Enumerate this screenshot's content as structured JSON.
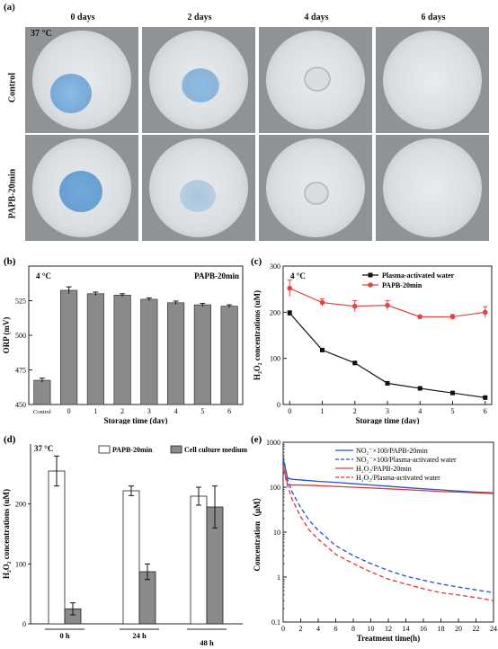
{
  "panel_a": {
    "label": "(a)",
    "temperature": "37 °C",
    "columns": [
      "0 days",
      "2 days",
      "4 days",
      "6 days"
    ],
    "rows": [
      "Control",
      "PAPB-20min"
    ],
    "drop_color": "#7fb2df"
  },
  "chart_data": [
    {
      "panel": "(b)",
      "type": "bar",
      "annotation_left": "4 °C",
      "annotation_right": "PAPB-20min",
      "categories": [
        "Control",
        "0",
        "1",
        "2",
        "3",
        "4",
        "5",
        "6"
      ],
      "values": [
        467.5,
        532.5,
        530,
        529,
        526,
        523.5,
        522,
        521
      ],
      "errors": [
        1.5,
        2.5,
        1.2,
        1.0,
        1.0,
        1.2,
        1.0,
        1.0
      ],
      "xlabel": "Storage time (day)",
      "ylabel": "ORP (mV)",
      "ylim": [
        450,
        550
      ],
      "yticks": [
        450,
        475,
        500,
        525
      ],
      "bar_color": "#8a8a8a"
    },
    {
      "panel": "(c)",
      "type": "line",
      "annotation": "4 °C",
      "x": [
        0,
        1,
        2,
        3,
        4,
        5,
        6
      ],
      "series": [
        {
          "name": "Plasma-activated water",
          "values": [
            198,
            118,
            90,
            46,
            35,
            25,
            15
          ],
          "errors": [
            5,
            2,
            2,
            2,
            2,
            2,
            2
          ],
          "color": "#111111",
          "marker": "square"
        },
        {
          "name": "PAPB-20min",
          "values": [
            252,
            221,
            213,
            215,
            190,
            190,
            200
          ],
          "errors": [
            18,
            8,
            12,
            10,
            3,
            5,
            12
          ],
          "color": "#e04444",
          "marker": "circle"
        }
      ],
      "xlabel": "Storage time (day)",
      "ylabel": "H₂O₂ concentrations (uM)",
      "xlim": [
        -0.2,
        6.2
      ],
      "ylim": [
        0,
        300
      ],
      "yticks": [
        0,
        100,
        200,
        300
      ],
      "legend": "top-right"
    },
    {
      "panel": "(d)",
      "type": "bar",
      "annotation": "37 °C",
      "categories": [
        "0 h",
        "24 h",
        "48 h"
      ],
      "series": [
        {
          "name": "PAPB-20min",
          "values": [
            255,
            222,
            213
          ],
          "errors": [
            25,
            8,
            15
          ],
          "color": "#ffffff"
        },
        {
          "name": "Cell culture medium",
          "values": [
            25,
            87,
            195
          ],
          "errors": [
            10,
            13,
            35
          ],
          "color": "#8a8a8a"
        }
      ],
      "ylabel": "H₂O₂ concentrations (uM)",
      "ylim": [
        0,
        300
      ],
      "yticks": [
        0,
        100,
        200
      ],
      "legend": "top-right"
    },
    {
      "panel": "(e)",
      "type": "line",
      "x": [
        0,
        0.5,
        1,
        2,
        3,
        4,
        6,
        8,
        10,
        12,
        14,
        16,
        18,
        20,
        22,
        24
      ],
      "series": [
        {
          "name": "NO₂⁻×100/PAPB-20min",
          "values": [
            420,
            160,
            150,
            145,
            140,
            135,
            128,
            120,
            112,
            105,
            98,
            92,
            87,
            82,
            78,
            75
          ],
          "color": "#2b4fc4",
          "dash": false
        },
        {
          "name": "NO₂⁻×100/Plasma-activated water",
          "values": [
            500,
            150,
            80,
            35,
            18,
            11,
            5,
            3,
            2,
            1.4,
            1.05,
            0.85,
            0.7,
            0.6,
            0.52,
            0.45
          ],
          "color": "#2b4fc4",
          "dash": true
        },
        {
          "name": "H₂O₂/PAPB-20min",
          "values": [
            300,
            115,
            112,
            112,
            110,
            108,
            104,
            100,
            96,
            92,
            88,
            84,
            80,
            78,
            75,
            72
          ],
          "color": "#d63a3a",
          "dash": false
        },
        {
          "name": "H₂O₂/Plasma-activated water",
          "values": [
            250,
            110,
            55,
            22,
            11,
            7,
            3.2,
            2,
            1.3,
            0.9,
            0.7,
            0.55,
            0.45,
            0.4,
            0.35,
            0.3
          ],
          "color": "#d63a3a",
          "dash": true
        }
      ],
      "xlabel": "Treatment time(h)",
      "ylabel": "Concentration（μM）",
      "xlim": [
        0,
        24
      ],
      "xticks": [
        0,
        2,
        4,
        6,
        8,
        10,
        12,
        14,
        16,
        18,
        20,
        22,
        24
      ],
      "ylim": [
        0.1,
        1000
      ],
      "yscale": "log",
      "yticks": [
        0.1,
        1,
        10,
        100,
        1000
      ],
      "ytick_labels": [
        "0.1",
        "1",
        "10",
        "100",
        "1000"
      ],
      "legend": "top-right"
    }
  ]
}
